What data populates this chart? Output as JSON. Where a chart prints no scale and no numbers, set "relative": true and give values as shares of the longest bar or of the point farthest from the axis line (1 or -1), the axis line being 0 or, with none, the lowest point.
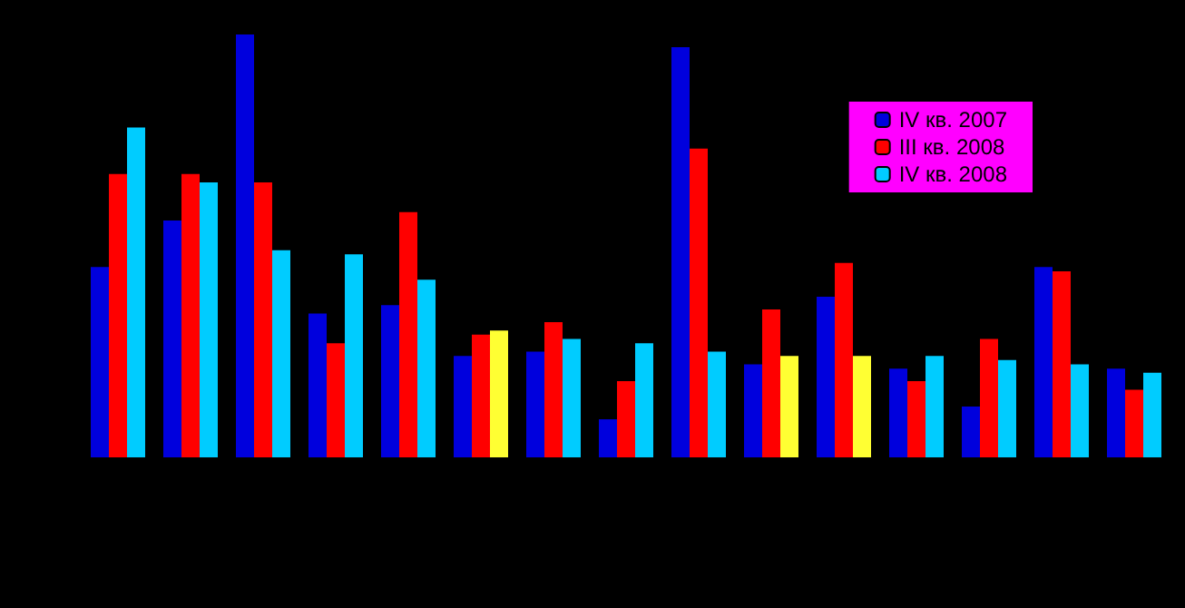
{
  "chart_data": {
    "type": "bar",
    "relative": true,
    "categories": [
      null,
      null,
      null,
      null,
      null,
      null,
      null,
      null,
      null,
      null,
      null,
      null,
      null,
      null,
      null
    ],
    "legend": "top right",
    "series": [
      {
        "name": "IV кв. 2007",
        "color": "#0000dd",
        "values": [
          0.45,
          0.56,
          1,
          0.34,
          0.36,
          0.24,
          0.25,
          0.09,
          0.97,
          0.22,
          0.38,
          0.21,
          0.12,
          0.45,
          0.21
        ]
      },
      {
        "name": "III кв. 2008",
        "color": "#ff0000",
        "values": [
          0.67,
          0.67,
          0.65,
          0.27,
          0.58,
          0.29,
          0.32,
          0.18,
          0.73,
          0.35,
          0.46,
          0.18,
          0.28,
          0.44,
          0.16
        ]
      },
      {
        "name": "IV кв. 2008",
        "color": "#00ccff",
        "colors": [
          "#00ccff",
          "#00ccff",
          "#00ccff",
          "#00ccff",
          "#00ccff",
          "#ffff33",
          "#00ccff",
          "#00ccff",
          "#00ccff",
          "#ffff33",
          "#ffff33",
          "#00ccff",
          "#00ccff",
          "#00ccff",
          "#00ccff"
        ],
        "values": [
          0.78,
          0.65,
          0.49,
          0.48,
          0.42,
          0.3,
          0.28,
          0.27,
          0.25,
          0.24,
          0.24,
          0.24,
          0.23,
          0.22,
          0.2
        ]
      }
    ]
  }
}
